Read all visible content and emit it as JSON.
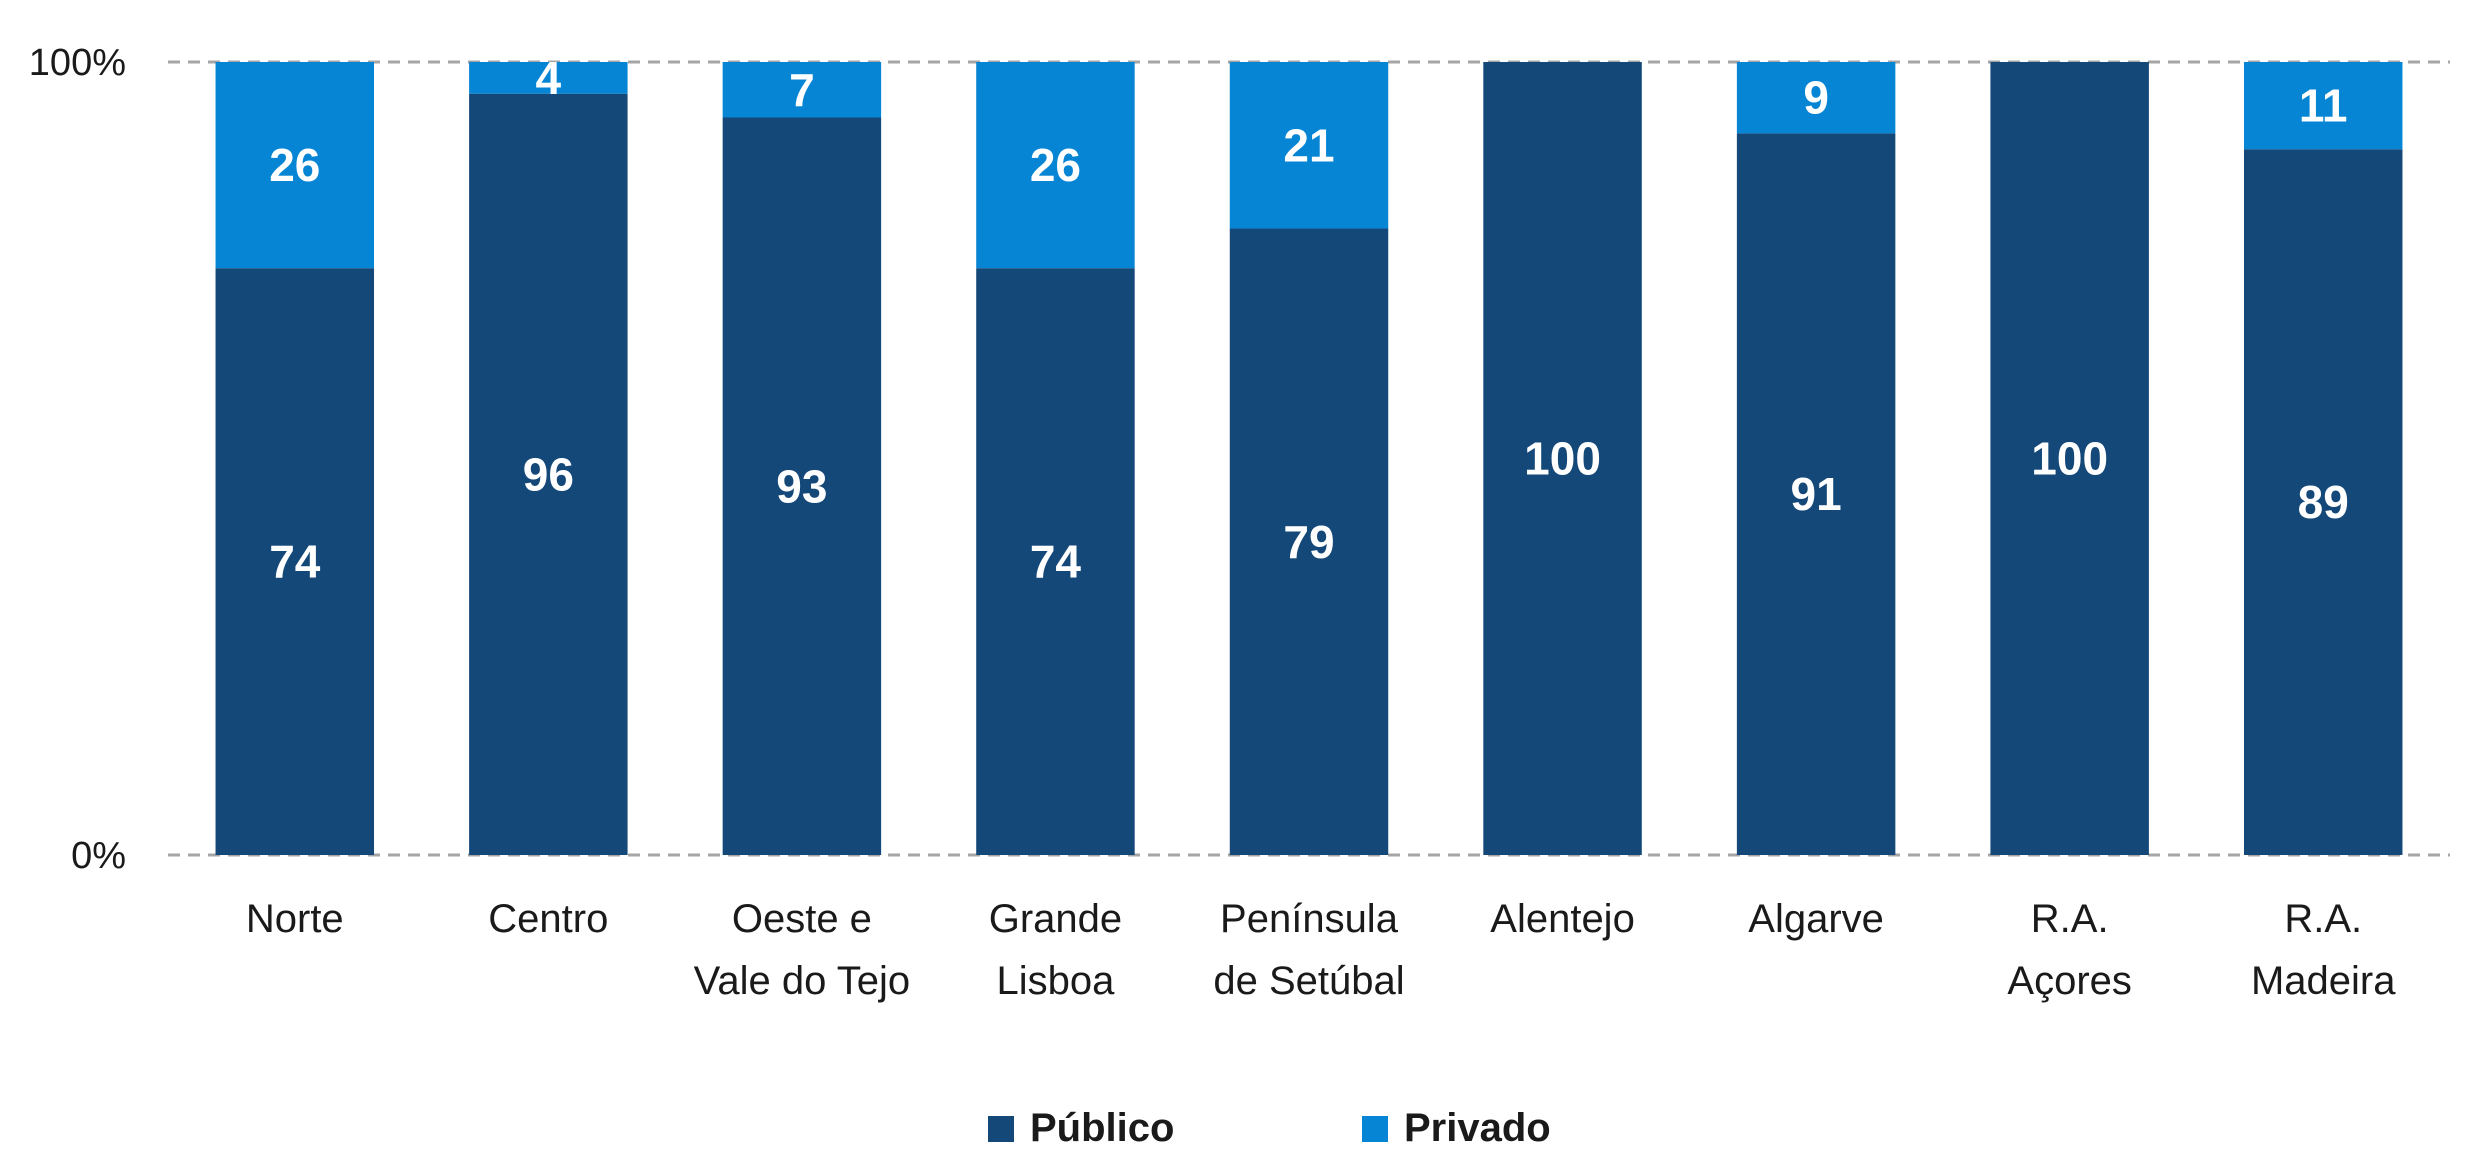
{
  "chart_data": {
    "type": "bar",
    "stacked": true,
    "normalized": true,
    "categories": [
      [
        "Norte"
      ],
      [
        "Centro"
      ],
      [
        "Oeste e",
        "Vale do Tejo"
      ],
      [
        "Grande",
        "Lisboa"
      ],
      [
        "Península",
        "de Setúbal"
      ],
      [
        "Alentejo"
      ],
      [
        "Algarve"
      ],
      [
        "R.A.",
        "Açores"
      ],
      [
        "R.A.",
        "Madeira"
      ]
    ],
    "series": [
      {
        "name": "Público",
        "color": "#134878",
        "values": [
          74,
          96,
          93,
          74,
          79,
          100,
          91,
          100,
          89
        ]
      },
      {
        "name": "Privado",
        "color": "#0685D4",
        "values": [
          26,
          4,
          7,
          26,
          21,
          0,
          9,
          0,
          11
        ]
      }
    ],
    "ylim": [
      0,
      100
    ],
    "yticks": [
      "0%",
      "100%"
    ],
    "gridlines": true,
    "gridline_style": "dashed",
    "legend_position": "bottom"
  }
}
